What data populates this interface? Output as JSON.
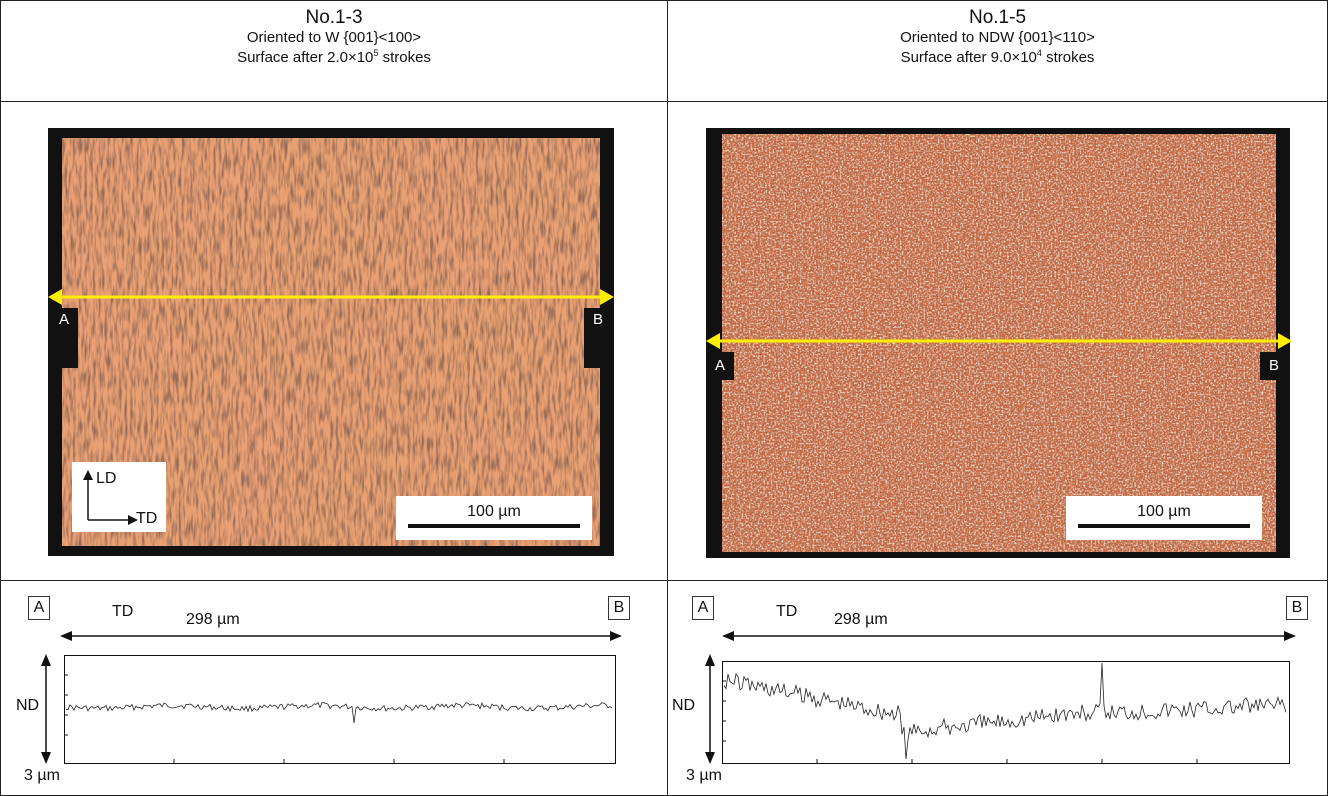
{
  "panels": [
    {
      "id": "No.1-3",
      "title": "No.1-3",
      "orientation_label": "Oriented to W {001}<100>",
      "surface_prefix": "Surface after 2.0×10",
      "surface_exp": "5",
      "surface_suffix": " strokes",
      "marker_a": "A",
      "marker_b": "B",
      "scale_bar": "100 µm",
      "axes": {
        "up": "LD",
        "right": "TD"
      },
      "profile": {
        "label_a": "A",
        "label_b": "B",
        "direction": "TD",
        "length": "298 µm",
        "vertical": "ND",
        "vertical_scale": "3 µm"
      },
      "image_tone": "#e39a6a"
    },
    {
      "id": "No.1-5",
      "title": "No.1-5",
      "orientation_label": "Oriented to NDW {001}<110>",
      "surface_prefix": "Surface after 9.0×10",
      "surface_exp": "4",
      "surface_suffix": " strokes",
      "marker_a": "A",
      "marker_b": "B",
      "scale_bar": "100 µm",
      "profile": {
        "label_a": "A",
        "label_b": "B",
        "direction": "TD",
        "length": "298 µm",
        "vertical": "ND",
        "vertical_scale": "3 µm"
      },
      "image_tone": "#c4603c"
    }
  ],
  "colors": {
    "line_marker": "#ffee00",
    "frame": "#111111",
    "grid": "#222222"
  }
}
